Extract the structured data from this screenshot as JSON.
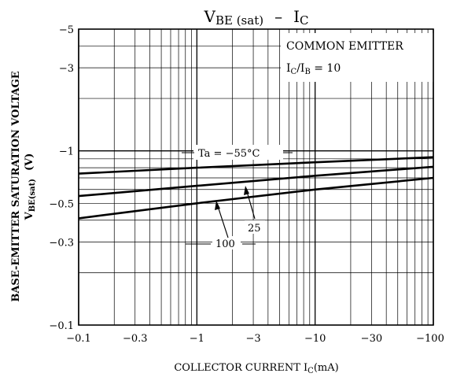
{
  "chart_data": {
    "type": "line",
    "title": {
      "main": "V",
      "main_sub": "BE (sat)",
      "dash": "–",
      "right": "I",
      "right_sub": "C"
    },
    "xlabel": {
      "text": "COLLECTOR   CURRENT   I",
      "sub": "C",
      "unit": "(mA)"
    },
    "ylabel": {
      "line1": "BASE-EMITTER SATURATION VOLTAGE",
      "line2_main": "V",
      "line2_sub": "BE(sat)",
      "line2_unit": "(V)"
    },
    "x_scale": "log",
    "y_scale": "log",
    "xlim": [
      -0.1,
      -100
    ],
    "ylim": [
      -0.1,
      -5
    ],
    "x_ticks": [
      {
        "value": -0.1,
        "label": "−0.1"
      },
      {
        "value": -0.3,
        "label": "−0.3"
      },
      {
        "value": -1,
        "label": "−1"
      },
      {
        "value": -3,
        "label": "−3"
      },
      {
        "value": -10,
        "label": "−10"
      },
      {
        "value": -30,
        "label": "−30"
      },
      {
        "value": -100,
        "label": "−100"
      }
    ],
    "y_ticks": [
      {
        "value": -5,
        "label": "−5"
      },
      {
        "value": -3,
        "label": "−3"
      },
      {
        "value": -1,
        "label": "−1"
      },
      {
        "value": -0.5,
        "label": "−0.5"
      },
      {
        "value": -0.3,
        "label": "−0.3"
      },
      {
        "value": -0.1,
        "label": "−0.1"
      }
    ],
    "legend_box": {
      "line1": "COMMON EMITTER",
      "line2_a": "I",
      "line2_a_sub": "C",
      "line2_b": "/I",
      "line2_b_sub": "B",
      "line2_c": " = 10"
    },
    "series": [
      {
        "name": "Ta = −55°C",
        "x": [
          -0.1,
          -1,
          -10,
          -100
        ],
        "y": [
          -0.74,
          -0.8,
          -0.86,
          -0.92
        ]
      },
      {
        "name": "25",
        "x": [
          -0.1,
          -1,
          -10,
          -100
        ],
        "y": [
          -0.55,
          -0.63,
          -0.72,
          -0.81
        ]
      },
      {
        "name": "100",
        "x": [
          -0.1,
          -1,
          -10,
          -100
        ],
        "y": [
          -0.41,
          -0.5,
          -0.6,
          -0.7
        ]
      }
    ],
    "grid": true
  }
}
